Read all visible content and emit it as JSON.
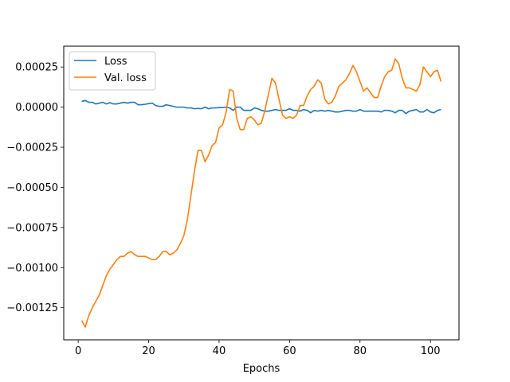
{
  "chart_data": {
    "type": "line",
    "title": "",
    "xlabel": "Epochs",
    "ylabel": "",
    "xlim": [
      -4.1,
      108.1
    ],
    "ylim": [
      -0.00145,
      0.00038
    ],
    "xticks": [
      0,
      20,
      40,
      60,
      80,
      100
    ],
    "xtick_labels": [
      "0",
      "20",
      "40",
      "60",
      "80",
      "100"
    ],
    "yticks": [
      0.00025,
      0.0,
      -0.00025,
      -0.0005,
      -0.00075,
      -0.001,
      -0.00125
    ],
    "ytick_labels": [
      "0.00025",
      "0.00000",
      "−0.00025",
      "−0.00050",
      "−0.00075",
      "−0.00100",
      "−0.00125"
    ],
    "grid": false,
    "legend_position": "top-left",
    "x": [
      1,
      2,
      3,
      4,
      5,
      6,
      7,
      8,
      9,
      10,
      11,
      12,
      13,
      14,
      15,
      16,
      17,
      18,
      19,
      20,
      21,
      22,
      23,
      24,
      25,
      26,
      27,
      28,
      29,
      30,
      31,
      32,
      33,
      34,
      35,
      36,
      37,
      38,
      39,
      40,
      41,
      42,
      43,
      44,
      45,
      46,
      47,
      48,
      49,
      50,
      51,
      52,
      53,
      54,
      55,
      56,
      57,
      58,
      59,
      60,
      61,
      62,
      63,
      64,
      65,
      66,
      67,
      68,
      69,
      70,
      71,
      72,
      73,
      74,
      75,
      76,
      77,
      78,
      79,
      80,
      81,
      82,
      83,
      84,
      85,
      86,
      87,
      88,
      89,
      90,
      91,
      92,
      93,
      94,
      95,
      96,
      97,
      98,
      99,
      100,
      101,
      102,
      103
    ],
    "series": [
      {
        "name": "Loss",
        "color": "#1f77b4",
        "values": [
          3.5e-05,
          4.2e-05,
          3e-05,
          3e-05,
          2e-05,
          2.5e-05,
          3e-05,
          2e-05,
          2.8e-05,
          2e-05,
          2e-05,
          2.5e-05,
          3e-05,
          2.5e-05,
          3e-05,
          3e-05,
          1.5e-05,
          1.5e-05,
          1.8e-05,
          2.2e-05,
          2.5e-05,
          1e-05,
          5e-06,
          5e-06,
          1.5e-05,
          1e-05,
          5e-06,
          0.0,
          0.0,
          0.0,
          -5e-06,
          -5e-06,
          -1e-05,
          -8e-06,
          -1e-05,
          0.0,
          -1e-05,
          -5e-06,
          -5e-06,
          -3e-06,
          -3e-06,
          0.0,
          -5e-06,
          -2e-05,
          0.0,
          0.0,
          -2e-05,
          -2e-05,
          -2e-05,
          -5e-06,
          -1e-05,
          -2e-05,
          -2.5e-05,
          -2.5e-05,
          -2e-05,
          -1.5e-05,
          -2e-05,
          -2e-05,
          -2e-05,
          -1e-05,
          -2e-05,
          -2e-05,
          -2.5e-05,
          -1.5e-05,
          -2e-05,
          -3.5e-05,
          -2e-05,
          -2.5e-05,
          -2e-05,
          -2.5e-05,
          -2e-05,
          -2.5e-05,
          -3e-05,
          -3e-05,
          -2.5e-05,
          -2e-05,
          -2e-05,
          -2.5e-05,
          -2.5e-05,
          -1.5e-05,
          -2.5e-05,
          -2.5e-05,
          -2.5e-05,
          -2.5e-05,
          -2.5e-05,
          -3e-05,
          -2e-05,
          -2e-05,
          -2.5e-05,
          -3.5e-05,
          -2e-05,
          -2e-05,
          -4e-05,
          -2.5e-05,
          -2e-05,
          -1.5e-05,
          -3e-05,
          -3e-05,
          -1.5e-05,
          -3e-05,
          -3.5e-05,
          -2e-05,
          -1.5e-05
        ]
      },
      {
        "name": "Val. loss",
        "color": "#ff7f0e",
        "values": [
          -0.00133,
          -0.00137,
          -0.0013,
          -0.00125,
          -0.00121,
          -0.00117,
          -0.00111,
          -0.00105,
          -0.00101,
          -0.00098,
          -0.00095,
          -0.00093,
          -0.00093,
          -0.00091,
          -0.0009,
          -0.00092,
          -0.00093,
          -0.00093,
          -0.00093,
          -0.00094,
          -0.00095,
          -0.00095,
          -0.00093,
          -0.0009,
          -0.0009,
          -0.00092,
          -0.00091,
          -0.00089,
          -0.00085,
          -0.0008,
          -0.0007,
          -0.00055,
          -0.0004,
          -0.00027,
          -0.00027,
          -0.00034,
          -0.0003,
          -0.00024,
          -0.00022,
          -0.00013,
          -0.00011,
          -3e-05,
          0.00011,
          0.0001,
          -7e-05,
          -0.00014,
          -0.00014,
          -7e-05,
          -6e-05,
          -8e-05,
          -0.00011,
          -0.0001,
          -2e-05,
          8e-05,
          0.00018,
          0.00015,
          5e-05,
          -5e-05,
          -7e-05,
          -6e-05,
          -7e-05,
          -5e-05,
          1e-05,
          1e-05,
          7e-05,
          0.00011,
          0.00013,
          0.00017,
          0.00015,
          5e-05,
          2e-05,
          3e-05,
          7e-05,
          0.00013,
          0.00015,
          0.00017,
          0.00021,
          0.00026,
          0.00022,
          0.00016,
          0.0001,
          0.00012,
          9e-05,
          6e-05,
          6e-05,
          0.00013,
          0.00019,
          0.00022,
          0.00023,
          0.0003,
          0.00027,
          0.00018,
          0.00012,
          0.00012,
          0.00011,
          0.0001,
          0.00014,
          0.00025,
          0.00022,
          0.00019,
          0.00022,
          0.00023,
          0.00016
        ]
      }
    ]
  }
}
